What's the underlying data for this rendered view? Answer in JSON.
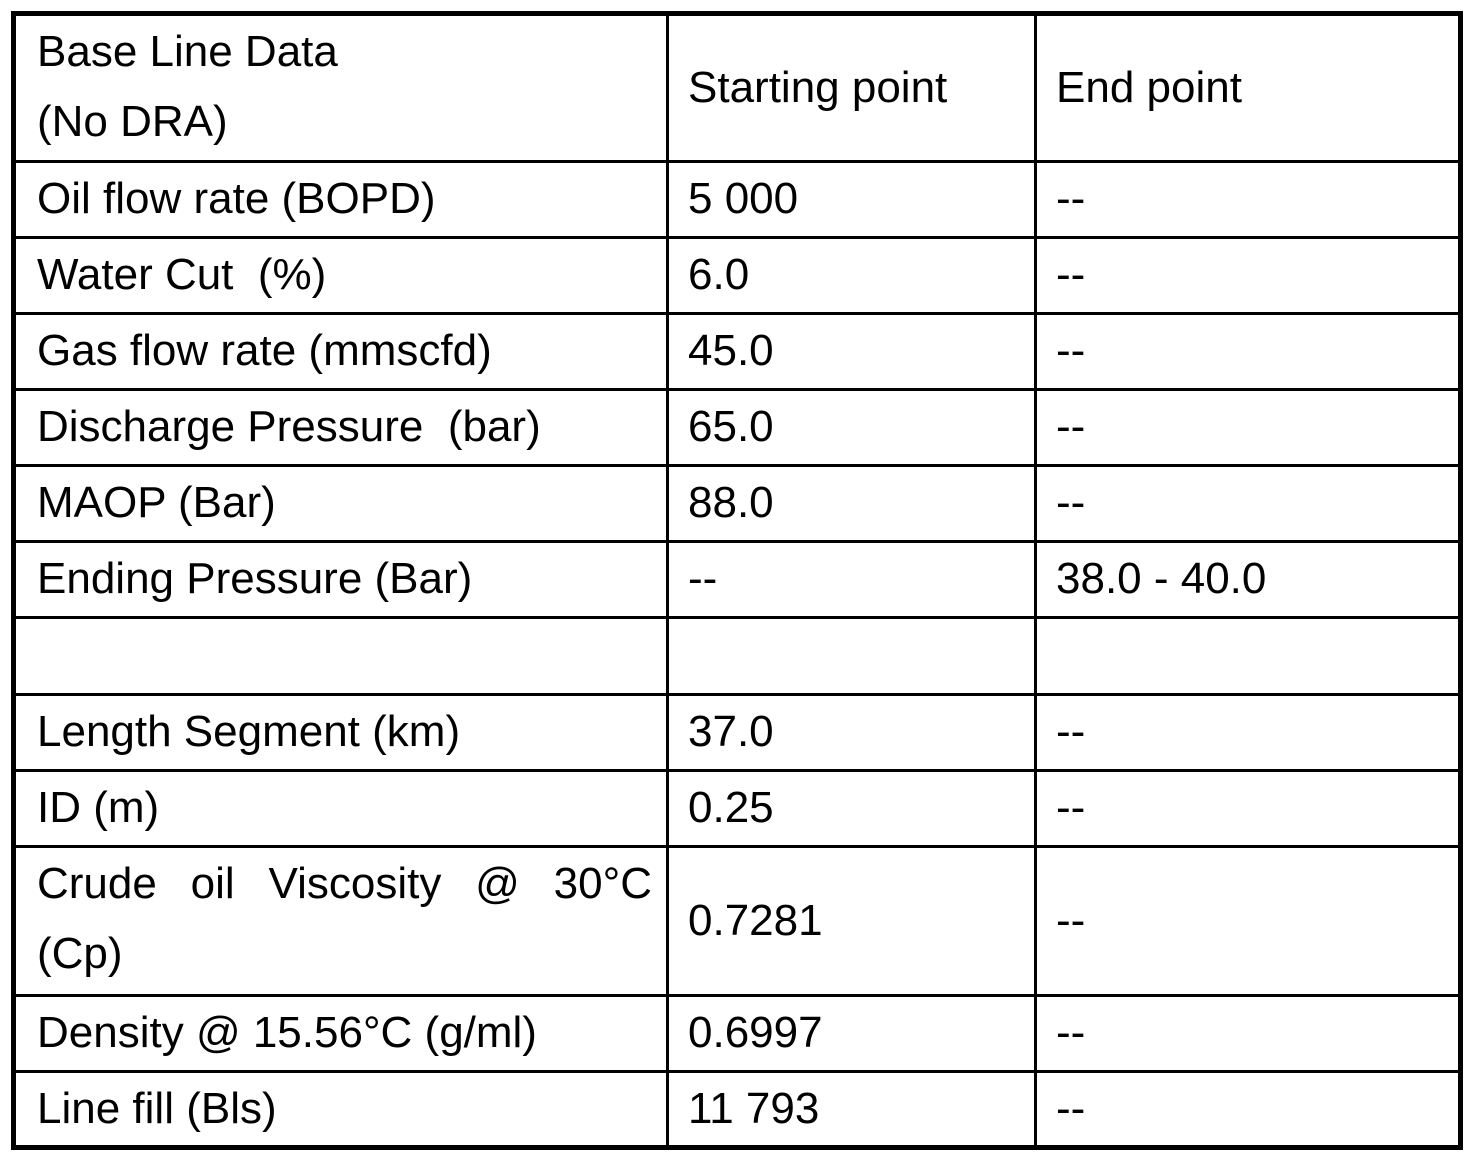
{
  "table": {
    "header": {
      "title": "Base Line Data\n(No DRA)",
      "col_start": "Starting point",
      "col_end": "End point"
    },
    "rows": [
      {
        "label": "Oil flow rate (BOPD)",
        "start": "5 000",
        "end": "--"
      },
      {
        "label": "Water Cut  (%)",
        "start": "6.0",
        "end": "--"
      },
      {
        "label": "Gas flow rate (mmscfd)",
        "start": "45.0",
        "end": "--"
      },
      {
        "label": "Discharge Pressure  (bar)",
        "start": "65.0",
        "end": "--"
      },
      {
        "label": "MAOP (Bar)",
        "start": "88.0",
        "end": "--"
      },
      {
        "label": "Ending Pressure (Bar)",
        "start": "--",
        "end": "38.0 - 40.0"
      },
      {
        "label": "",
        "start": "",
        "end": ""
      },
      {
        "label": "Length Segment (km)",
        "start": "37.0",
        "end": "--"
      },
      {
        "label": "ID (m)",
        "start": "0.25",
        "end": "--"
      },
      {
        "label": "Crude oil Viscosity @ 30°C (Cp)",
        "start": "0.7281",
        "end": "--"
      },
      {
        "label": "Density @ 15.56°C (g/ml)",
        "start": "0.6997",
        "end": "--"
      },
      {
        "label": "Line fill (Bls)",
        "start": "11 793",
        "end": "--"
      }
    ]
  },
  "colors": {
    "text": "#000000",
    "border": "#000000",
    "background": "#ffffff"
  }
}
